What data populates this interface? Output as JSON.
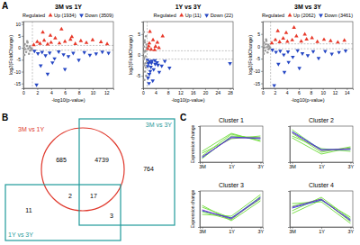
{
  "chart_data": [
    {
      "type": "scatter",
      "panel": "A",
      "title": "3M vs 1Y",
      "x_label": "-log10(p-value)",
      "y_label": "log2(FoldChange)",
      "legend_title": "Regulated",
      "legend": "top-right",
      "grid": false,
      "xlim": [
        0,
        13
      ],
      "xticks": [
        0,
        2,
        4,
        6,
        8,
        10,
        12
      ],
      "ylim": [
        -17,
        11
      ],
      "yticks": [
        -15,
        -10,
        -5,
        0,
        5,
        10
      ],
      "hlines": [
        -1,
        1
      ],
      "vlines": [
        1.3
      ],
      "series": [
        {
          "name": "Up (1934)",
          "color": "#e8392a",
          "marker": "triangle-up",
          "x": [
            1.5,
            2,
            2.4,
            3,
            3.5,
            4,
            4.6,
            5.2,
            6,
            6.8,
            7.5,
            8.3,
            9.1,
            10,
            11.2,
            12.1,
            2.8,
            3.9,
            5.5,
            7
          ],
          "values": [
            1.2,
            2.5,
            1.8,
            3.1,
            1.5,
            2.2,
            4,
            1.9,
            2.6,
            3.5,
            1.7,
            2.9,
            2.1,
            3.3,
            2.4,
            1.6,
            6.5,
            5.2,
            7.8,
            4.6
          ]
        },
        {
          "name": "Down (3509)",
          "color": "#2647c4",
          "marker": "triangle-down",
          "x": [
            1.6,
            2.1,
            2.7,
            3.2,
            3.8,
            4.5,
            5.1,
            5.8,
            6.5,
            7.2,
            8,
            8.8,
            9.6,
            10.5,
            11.4,
            12.3,
            2.5,
            4.2,
            6,
            1.9,
            3.5
          ],
          "values": [
            -1.3,
            -2.4,
            -1.8,
            -3.2,
            -2.1,
            -4.5,
            -1.6,
            -2.8,
            -3.6,
            -2.2,
            -5.1,
            -1.9,
            -3,
            -2.5,
            -1.7,
            -2.2,
            -7.5,
            -6.2,
            -9,
            -15.5,
            -11
          ]
        },
        {
          "color": "#9a9a9a",
          "marker": "circle",
          "x": [
            0.1,
            0.3,
            0.5,
            0.7,
            0.9,
            1.1,
            0.2,
            0.4,
            0.6,
            0.8,
            1,
            1.2,
            0.15,
            0.55,
            0.95
          ],
          "values": [
            0.2,
            -0.5,
            0.8,
            -0.3,
            0.6,
            -0.9,
            1.5,
            -1.8,
            2.2,
            -2.5,
            0.1,
            -0.4,
            -3,
            2.8,
            -1.2
          ]
        }
      ]
    },
    {
      "type": "scatter",
      "title": "1Y vs 3Y",
      "x_label": "-log10(p-value)",
      "y_label": "log2(FoldChange)",
      "legend_title": "Regulated",
      "legend": "top-right",
      "grid": false,
      "xlim": [
        0,
        29
      ],
      "xticks": [
        0,
        4,
        8,
        12,
        16,
        20,
        24,
        28
      ],
      "ylim": [
        -8,
        8
      ],
      "yticks": [
        -5,
        0,
        5
      ],
      "hlines": [
        -1,
        1
      ],
      "vlines": [
        1.3
      ],
      "series": [
        {
          "name": "Up (11)",
          "color": "#e8392a",
          "marker": "triangle-up",
          "x": [
            1.5,
            2,
            2.6,
            3.2,
            4,
            5.1,
            6.3,
            2.2,
            3.7,
            1.8,
            4.6
          ],
          "values": [
            1.5,
            2.8,
            1.3,
            3.6,
            2,
            1.7,
            4.5,
            5.6,
            1.2,
            2.1,
            3
          ]
        },
        {
          "name": "Down (22)",
          "color": "#2647c4",
          "marker": "triangle-down",
          "x": [
            1.4,
            1.7,
            2.1,
            2.5,
            2.9,
            3.4,
            3.9,
            4.5,
            5.2,
            6,
            7,
            1.6,
            2.3,
            3.1,
            3.8,
            4.8,
            1.5,
            2,
            2.7,
            8.5,
            28,
            1.9
          ],
          "values": [
            -1.2,
            -2,
            -1.6,
            -2.9,
            -1.4,
            -3.5,
            -2.2,
            -1.8,
            -4.1,
            -2.6,
            -1.5,
            -5.5,
            -3.9,
            -6.2,
            -1.3,
            -2.4,
            -2.7,
            -4.6,
            -1.9,
            -3.1,
            -2,
            -6.8
          ]
        },
        {
          "color": "#9a9a9a",
          "marker": "circle",
          "x": [
            0.1,
            0.2,
            0.3,
            0.4,
            0.5,
            0.6,
            0.7,
            0.8,
            0.9,
            1,
            1.1,
            1.2,
            0.25,
            0.45,
            0.65,
            0.85,
            1.05,
            0.35,
            0.55,
            0.75
          ],
          "values": [
            0.5,
            -1,
            2,
            -2.5,
            3.5,
            -4,
            1,
            -0.3,
            4.5,
            -5,
            2.5,
            -1.5,
            5.5,
            -6,
            0.8,
            -3,
            1.8,
            -0.7,
            3,
            -2
          ]
        }
      ]
    },
    {
      "type": "scatter",
      "title": "3M vs 3Y",
      "x_label": "-log10(p-value)",
      "y_label": "log2(FoldChange)",
      "legend_title": "Regulated",
      "legend": "top-right",
      "grid": false,
      "xlim": [
        0,
        15
      ],
      "xticks": [
        0,
        2,
        4,
        6,
        8,
        10,
        12,
        14
      ],
      "ylim": [
        -17,
        10
      ],
      "yticks": [
        -15,
        -10,
        -5,
        0,
        5
      ],
      "hlines": [
        -1,
        1
      ],
      "vlines": [
        1.3
      ],
      "series": [
        {
          "name": "Up (2062)",
          "color": "#e8392a",
          "marker": "triangle-up",
          "x": [
            1.5,
            2.1,
            2.8,
            3.4,
            4.1,
            4.9,
            5.6,
            6.4,
            7.3,
            8.2,
            9.1,
            10.2,
            11.3,
            12.5,
            13.6,
            2.5,
            3.9,
            5.2,
            7
          ],
          "values": [
            1.3,
            2.6,
            1.7,
            3.2,
            1.9,
            2.5,
            4.1,
            2,
            2.8,
            3.4,
            1.8,
            2.7,
            2.2,
            1.6,
            2.4,
            6.2,
            5.5,
            7.6,
            4.8
          ]
        },
        {
          "name": "Down (3461)",
          "color": "#2647c4",
          "marker": "triangle-down",
          "x": [
            1.6,
            2.2,
            2.9,
            3.5,
            4.2,
            5,
            5.8,
            6.6,
            7.5,
            8.4,
            9.3,
            10.4,
            11.5,
            12.7,
            13.8,
            2.6,
            4.3,
            6.1,
            1.9,
            3.6
          ],
          "values": [
            -1.4,
            -2.3,
            -1.9,
            -3.4,
            -2.2,
            -4.3,
            -1.7,
            -2.9,
            -3.7,
            -2.1,
            -4.8,
            -2,
            -3.1,
            -2.4,
            -1.8,
            -7.2,
            -6.4,
            -8.8,
            -15.8,
            -10.5
          ]
        },
        {
          "color": "#9a9a9a",
          "marker": "circle",
          "x": [
            0.1,
            0.3,
            0.5,
            0.7,
            0.9,
            1.1,
            0.2,
            0.4,
            0.6,
            0.8,
            1,
            1.2,
            0.15,
            0.55,
            0.95
          ],
          "values": [
            0.2,
            -0.5,
            0.8,
            -0.3,
            0.6,
            -0.9,
            1.5,
            -1.8,
            2.2,
            -2.5,
            0.1,
            -0.4,
            -3,
            2.8,
            -1.2
          ]
        }
      ]
    },
    {
      "type": "venn",
      "panel": "B",
      "sets": [
        {
          "label": "3M vs 1Y",
          "color": "#e0392d"
        },
        {
          "label": "3M vs 3Y",
          "color": "#1f9a9a"
        },
        {
          "label": "1Y vs 3Y",
          "color": "#1f9a9a"
        }
      ],
      "regions": [
        {
          "sets": [
            0
          ],
          "value": 685
        },
        {
          "sets": [
            0,
            1
          ],
          "value": 4739
        },
        {
          "sets": [
            1
          ],
          "value": 764
        },
        {
          "sets": [
            0,
            2
          ],
          "value": 2
        },
        {
          "sets": [
            0,
            1,
            2
          ],
          "value": 17
        },
        {
          "sets": [
            2
          ],
          "value": 11
        },
        {
          "sets": [
            1,
            2
          ],
          "value": 3
        }
      ]
    },
    {
      "type": "line",
      "panel": "C",
      "title": "Cluster 1",
      "y_label": "Expression change",
      "tick_labels": "x",
      "categories": [
        "3M",
        "1Y",
        "3Y"
      ],
      "ylim": [
        -2,
        2
      ],
      "series": [
        {
          "color": "#6fdc3a",
          "values": [
            -1.6,
            0.9,
            0.7
          ]
        },
        {
          "color": "#6fdc3a",
          "values": [
            -1.3,
            1.1,
            0.4
          ]
        },
        {
          "color": "#6fdc3a",
          "values": [
            -1.0,
            0.6,
            0.9
          ]
        },
        {
          "color": "#6fdc3a",
          "values": [
            -0.8,
            1.2,
            0.3
          ]
        },
        {
          "color": "#2b3fd6",
          "values": [
            -1.5,
            0.8,
            0.6
          ]
        },
        {
          "color": "#6a2bc8",
          "values": [
            -1.4,
            0.7,
            0.7
          ]
        }
      ]
    },
    {
      "type": "line",
      "title": "Cluster 2",
      "tick_labels": "x",
      "categories": [
        "3M",
        "1Y",
        "3Y"
      ],
      "ylim": [
        -2,
        2
      ],
      "series": [
        {
          "color": "#6fdc3a",
          "values": [
            1.6,
            -0.7,
            -0.5
          ]
        },
        {
          "color": "#6fdc3a",
          "values": [
            1.2,
            -0.9,
            -0.3
          ]
        },
        {
          "color": "#6fdc3a",
          "values": [
            0.9,
            -0.5,
            -0.8
          ]
        },
        {
          "color": "#6fdc3a",
          "values": [
            0.7,
            -1.1,
            -0.4
          ]
        },
        {
          "color": "#2b3fd6",
          "values": [
            1.4,
            -0.6,
            -0.6
          ]
        },
        {
          "color": "#6a2bc8",
          "values": [
            1.3,
            -0.7,
            -0.5
          ]
        }
      ]
    },
    {
      "type": "line",
      "title": "Cluster 3",
      "y_label": "Expression change",
      "tick_labels": "x",
      "categories": [
        "3M",
        "1Y",
        "3Y"
      ],
      "ylim": [
        -2,
        2
      ],
      "series": [
        {
          "color": "#6fdc3a",
          "values": [
            -0.3,
            -1.2,
            1.4
          ]
        },
        {
          "color": "#6fdc3a",
          "values": [
            0.2,
            -1.0,
            1.1
          ]
        },
        {
          "color": "#6fdc3a",
          "values": [
            -0.6,
            -0.8,
            1.6
          ]
        },
        {
          "color": "#6fdc3a",
          "values": [
            0.4,
            -1.3,
            0.9
          ]
        },
        {
          "color": "#2b3fd6",
          "values": [
            -0.2,
            -1.0,
            1.3
          ]
        },
        {
          "color": "#6a2bc8",
          "values": [
            -0.1,
            -1.1,
            1.2
          ]
        }
      ]
    },
    {
      "type": "line",
      "title": "Cluster 4",
      "tick_labels": "x",
      "categories": [
        "3M",
        "1Y",
        "3Y"
      ],
      "ylim": [
        -2,
        2
      ],
      "series": [
        {
          "color": "#6fdc3a",
          "values": [
            0.3,
            1.1,
            -1.4
          ]
        },
        {
          "color": "#6fdc3a",
          "values": [
            -0.2,
            1.3,
            -1.1
          ]
        },
        {
          "color": "#6fdc3a",
          "values": [
            0.6,
            0.8,
            -1.6
          ]
        },
        {
          "color": "#6fdc3a",
          "values": [
            -0.5,
            1.0,
            -0.9
          ]
        },
        {
          "color": "#2b3fd6",
          "values": [
            0.1,
            1.0,
            -1.2
          ]
        },
        {
          "color": "#6a2bc8",
          "values": [
            0.2,
            1.1,
            -1.3
          ]
        }
      ]
    }
  ]
}
